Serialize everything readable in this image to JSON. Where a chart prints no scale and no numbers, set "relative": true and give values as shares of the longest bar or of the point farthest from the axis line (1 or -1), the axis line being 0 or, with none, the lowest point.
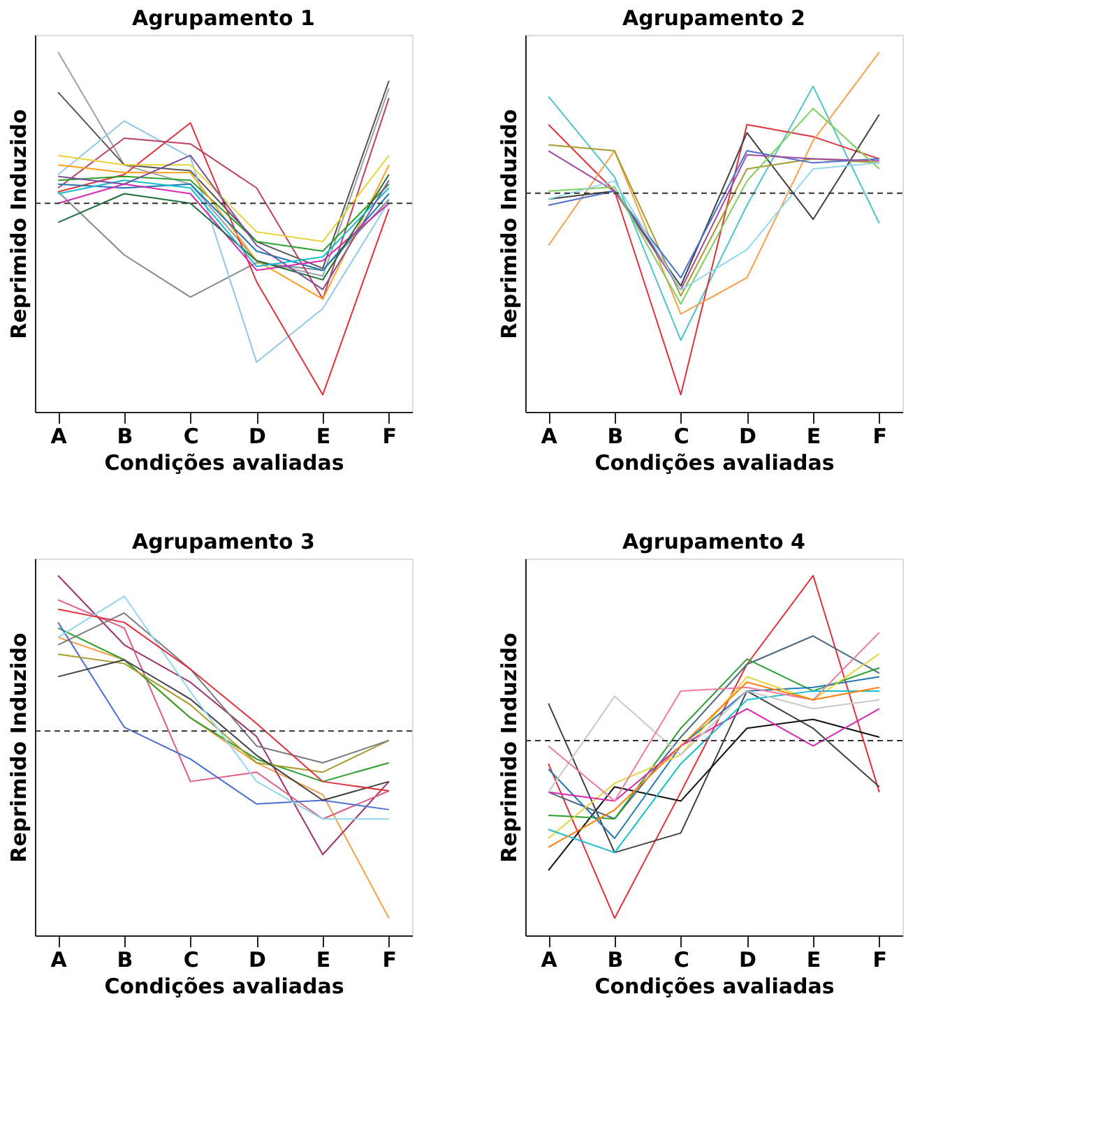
{
  "chart_data": [
    {
      "type": "line",
      "title": "Agrupamento 1",
      "xlabel": "Condições avaliadas",
      "ylabel": "Reprimido      Induzido",
      "categories": [
        "A",
        "B",
        "C",
        "D",
        "E",
        "F"
      ],
      "relative": true,
      "grid": false,
      "legend": false,
      "tick_labels": "x",
      "line_style": "solid",
      "ref_lines": [
        {
          "axis": "y",
          "value": 0,
          "line_style": "dashed",
          "color": "#333333"
        }
      ],
      "series": [
        {
          "color": "#9aa3a8",
          "values": [
            0.79,
            0.2,
            0.1,
            -0.3,
            -0.38,
            0.6
          ]
        },
        {
          "color": "#555555",
          "values": [
            0.58,
            0.2,
            0.17,
            -0.2,
            -0.34,
            0.64
          ]
        },
        {
          "color": "#7f8c8d",
          "values": [
            0.06,
            -0.27,
            -0.49,
            -0.31,
            -0.35,
            0.02
          ]
        },
        {
          "color": "#8fc8e8",
          "values": [
            0.15,
            0.43,
            0.24,
            -0.83,
            -0.55,
            0.01
          ]
        },
        {
          "color": "#e0303a",
          "values": [
            0.06,
            0.15,
            0.42,
            -0.41,
            -1,
            -0.03
          ]
        },
        {
          "color": "#c04060",
          "values": [
            0.08,
            0.34,
            0.31,
            0.08,
            -0.5,
            0.55
          ]
        },
        {
          "color": "#2ca02c",
          "values": [
            0.12,
            0.14,
            0.12,
            -0.2,
            -0.25,
            0.1
          ]
        },
        {
          "color": "#ff9f1c",
          "values": [
            0.2,
            0.16,
            0.16,
            -0.3,
            -0.5,
            0.2
          ]
        },
        {
          "color": "#1f77b4",
          "values": [
            0.1,
            0.08,
            0.1,
            -0.25,
            -0.35,
            0.05
          ]
        },
        {
          "color": "#d62ab0",
          "values": [
            0.0,
            0.1,
            0.05,
            -0.35,
            -0.3,
            0.0
          ]
        },
        {
          "color": "#e8d43a",
          "values": [
            0.25,
            0.2,
            0.2,
            -0.15,
            -0.2,
            0.25
          ]
        },
        {
          "color": "#1b6e3a",
          "values": [
            -0.1,
            0.05,
            0.0,
            -0.3,
            -0.4,
            0.15
          ]
        },
        {
          "color": "#17becf",
          "values": [
            0.05,
            0.12,
            0.08,
            -0.33,
            -0.28,
            0.08
          ]
        },
        {
          "color": "#7b4fa0",
          "values": [
            0.14,
            0.1,
            0.25,
            -0.22,
            -0.45,
            0.12
          ]
        }
      ]
    },
    {
      "type": "line",
      "title": "Agrupamento 2",
      "xlabel": "Condições avaliadas",
      "ylabel": "Reprimido      Induzido",
      "categories": [
        "A",
        "B",
        "C",
        "D",
        "E",
        "F"
      ],
      "relative": true,
      "grid": false,
      "legend": false,
      "tick_labels": "x",
      "line_style": "solid",
      "ref_lines": [
        {
          "axis": "y",
          "value": 0,
          "line_style": "dashed",
          "color": "#333333"
        }
      ],
      "series": [
        {
          "color": "#4fc3c8",
          "values": [
            0.48,
            0.08,
            -0.73,
            -0.06,
            0.53,
            -0.15
          ]
        },
        {
          "color": "#e0303a",
          "values": [
            0.34,
            0.01,
            -1,
            0.34,
            0.28,
            0.17
          ]
        },
        {
          "color": "#f5a04a",
          "values": [
            -0.26,
            0.21,
            -0.6,
            -0.42,
            0.26,
            0.7
          ]
        },
        {
          "color": "#404040",
          "values": [
            -0.03,
            0.01,
            -0.46,
            0.3,
            -0.13,
            0.39
          ]
        },
        {
          "color": "#a89a2a",
          "values": [
            0.24,
            0.21,
            -0.51,
            0.12,
            0.17,
            0.15
          ]
        },
        {
          "color": "#4a6fd0",
          "values": [
            -0.06,
            0.01,
            -0.42,
            0.21,
            0.15,
            0.17
          ]
        },
        {
          "color": "#a04aa0",
          "values": [
            0.21,
            0.01,
            -0.48,
            0.19,
            0.17,
            0.16
          ]
        },
        {
          "color": "#7ccf5a",
          "values": [
            0.01,
            0.03,
            -0.55,
            0.06,
            0.42,
            0.12
          ]
        },
        {
          "color": "#8fd8f0",
          "values": [
            -0.03,
            0.06,
            -0.48,
            -0.28,
            0.12,
            0.15
          ]
        }
      ]
    },
    {
      "type": "line",
      "title": "Agrupamento 3",
      "xlabel": "Condições avaliadas",
      "ylabel": "Reprimido      Induzido",
      "categories": [
        "A",
        "B",
        "C",
        "D",
        "E",
        "F"
      ],
      "relative": true,
      "grid": false,
      "legend": false,
      "tick_labels": "x",
      "line_style": "solid",
      "ref_lines": [
        {
          "axis": "y",
          "value": 0,
          "line_style": "dashed",
          "color": "#333333"
        }
      ],
      "series": [
        {
          "color": "#f5a04a",
          "values": [
            0.5,
            0.38,
            0.07,
            -0.17,
            -0.34,
            -1
          ]
        },
        {
          "color": "#a0306a",
          "values": [
            0.83,
            0.46,
            0.26,
            -0.03,
            -0.66,
            -0.27
          ]
        },
        {
          "color": "#e05a80",
          "values": [
            0.7,
            0.55,
            -0.27,
            -0.22,
            -0.47,
            -0.32
          ]
        },
        {
          "color": "#2ca02c",
          "values": [
            0.55,
            0.38,
            0.07,
            -0.15,
            -0.27,
            -0.17
          ]
        },
        {
          "color": "#4a6fd0",
          "values": [
            0.58,
            0.02,
            -0.15,
            -0.39,
            -0.37,
            -0.42
          ]
        },
        {
          "color": "#a89a2a",
          "values": [
            0.41,
            0.36,
            0.14,
            -0.17,
            -0.22,
            -0.05
          ]
        },
        {
          "color": "#404040",
          "values": [
            0.29,
            0.38,
            0.17,
            -0.13,
            -0.37,
            -0.27
          ]
        },
        {
          "color": "#7a7a7a",
          "values": [
            0.46,
            0.63,
            0.33,
            -0.08,
            -0.17,
            -0.05
          ]
        },
        {
          "color": "#8fd8f0",
          "values": [
            0.5,
            0.72,
            0.21,
            -0.27,
            -0.47,
            -0.47
          ]
        },
        {
          "color": "#e0303a",
          "values": [
            0.65,
            0.58,
            0.33,
            0.04,
            -0.27,
            -0.32
          ]
        }
      ]
    },
    {
      "type": "line",
      "title": "Agrupamento 4",
      "xlabel": "Condições avaliadas",
      "ylabel": "Reprimido      Induzido",
      "categories": [
        "A",
        "B",
        "C",
        "D",
        "E",
        "F"
      ],
      "relative": true,
      "grid": false,
      "legend": false,
      "tick_labels": "x",
      "line_style": "solid",
      "ref_lines": [
        {
          "axis": "y",
          "value": 0,
          "line_style": "dashed",
          "color": "#333333"
        }
      ],
      "series": [
        {
          "color": "#e0303a",
          "values": [
            -0.13,
            -1,
            -0.29,
            0.43,
            0.93,
            -0.29
          ]
        },
        {
          "color": "#404040",
          "values": [
            0.21,
            -0.63,
            -0.52,
            0.28,
            0.07,
            -0.26
          ]
        },
        {
          "color": "#111111",
          "values": [
            -0.73,
            -0.26,
            -0.34,
            0.07,
            0.12,
            0.02
          ]
        },
        {
          "color": "#4a6a80",
          "values": [
            -0.29,
            -0.44,
            0.02,
            0.43,
            0.59,
            0.38
          ]
        },
        {
          "color": "#2ca02c",
          "values": [
            -0.42,
            -0.44,
            0.07,
            0.46,
            0.28,
            0.41
          ]
        },
        {
          "color": "#1f77b4",
          "values": [
            -0.16,
            -0.55,
            -0.03,
            0.28,
            0.3,
            0.36
          ]
        },
        {
          "color": "#e8d43a",
          "values": [
            -0.55,
            -0.24,
            -0.08,
            0.36,
            0.23,
            0.49
          ]
        },
        {
          "color": "#d62ab0",
          "values": [
            -0.29,
            -0.34,
            -0.03,
            0.18,
            -0.03,
            0.18
          ]
        },
        {
          "color": "#17becf",
          "values": [
            -0.5,
            -0.63,
            -0.13,
            0.23,
            0.28,
            0.28
          ]
        },
        {
          "color": "#c8c8c8",
          "values": [
            -0.29,
            0.25,
            -0.08,
            0.28,
            0.18,
            0.23
          ]
        },
        {
          "color": "#f07aa0",
          "values": [
            -0.03,
            -0.34,
            0.28,
            0.3,
            0.23,
            0.61
          ]
        },
        {
          "color": "#ff7f0e",
          "values": [
            -0.6,
            -0.39,
            -0.03,
            0.33,
            0.23,
            0.3
          ]
        }
      ]
    }
  ]
}
